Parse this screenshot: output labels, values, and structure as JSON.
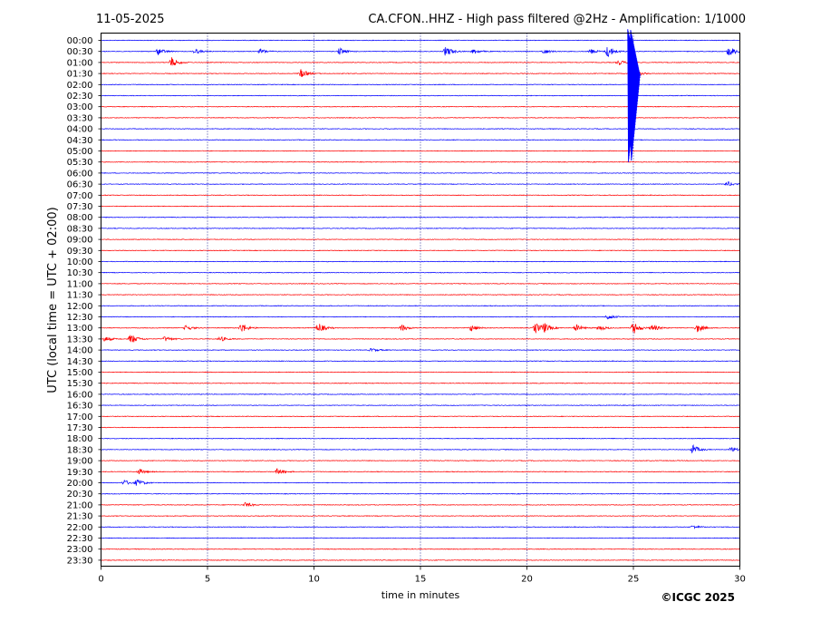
{
  "header": {
    "date": "11-05-2025",
    "title": "CA.CFON..HHZ - High pass filtered @2Hz - Amplification: 1/1000"
  },
  "footer": {
    "copyright": "©ICGC 2025"
  },
  "chart_data": {
    "type": "line",
    "xlabel": "time in minutes",
    "ylabel": "UTC (local time = UTC + 02:00)",
    "xlim": [
      0,
      30
    ],
    "x_ticks": [
      0,
      5,
      10,
      15,
      20,
      25,
      30
    ],
    "vertical_gridlines": [
      5,
      10,
      15,
      20,
      25
    ],
    "grid": "vertical dotted",
    "colors": {
      "odd_hour_traces": "#ff0000",
      "even_hour_traces": "#0000ff",
      "grid": "#000080"
    },
    "rows": [
      "00:00",
      "00:30",
      "01:00",
      "01:30",
      "02:00",
      "02:30",
      "03:00",
      "03:30",
      "04:00",
      "04:30",
      "05:00",
      "05:30",
      "06:00",
      "06:30",
      "07:00",
      "07:30",
      "08:00",
      "08:30",
      "09:00",
      "09:30",
      "10:00",
      "10:30",
      "11:00",
      "11:30",
      "12:00",
      "12:30",
      "13:00",
      "13:30",
      "14:00",
      "14:30",
      "15:00",
      "15:30",
      "16:00",
      "16:30",
      "17:00",
      "17:30",
      "18:00",
      "18:30",
      "19:00",
      "19:30",
      "20:00",
      "20:30",
      "21:00",
      "21:30",
      "22:00",
      "22:30",
      "23:00",
      "23:30"
    ],
    "events": [
      {
        "row": 1,
        "t": 2.7,
        "amp": 4
      },
      {
        "row": 1,
        "t": 4.4,
        "amp": 3
      },
      {
        "row": 1,
        "t": 7.5,
        "amp": 3
      },
      {
        "row": 1,
        "t": 11.2,
        "amp": 4
      },
      {
        "row": 1,
        "t": 16.2,
        "amp": 6
      },
      {
        "row": 1,
        "t": 17.5,
        "amp": 3
      },
      {
        "row": 1,
        "t": 20.8,
        "amp": 3
      },
      {
        "row": 1,
        "t": 23.0,
        "amp": 3
      },
      {
        "row": 1,
        "t": 23.8,
        "amp": 7
      },
      {
        "row": 1,
        "t": 29.5,
        "amp": 6
      },
      {
        "row": 2,
        "t": 3.3,
        "amp": 6
      },
      {
        "row": 2,
        "t": 24.3,
        "amp": 3
      },
      {
        "row": 3,
        "t": 9.4,
        "amp": 5
      },
      {
        "row": 3,
        "t": 24.9,
        "amp": 8
      },
      {
        "row": 13,
        "t": 29.4,
        "amp": 3
      },
      {
        "row": 25,
        "t": 23.8,
        "amp": 3
      },
      {
        "row": 26,
        "t": 4.0,
        "amp": 3
      },
      {
        "row": 26,
        "t": 6.6,
        "amp": 6
      },
      {
        "row": 26,
        "t": 10.2,
        "amp": 6
      },
      {
        "row": 26,
        "t": 14.1,
        "amp": 4
      },
      {
        "row": 26,
        "t": 17.4,
        "amp": 4
      },
      {
        "row": 26,
        "t": 20.4,
        "amp": 6
      },
      {
        "row": 26,
        "t": 20.8,
        "amp": 5
      },
      {
        "row": 26,
        "t": 22.3,
        "amp": 4
      },
      {
        "row": 26,
        "t": 23.4,
        "amp": 3
      },
      {
        "row": 26,
        "t": 25.0,
        "amp": 7
      },
      {
        "row": 26,
        "t": 25.9,
        "amp": 4
      },
      {
        "row": 26,
        "t": 28.0,
        "amp": 5
      },
      {
        "row": 27,
        "t": 0.2,
        "amp": 3
      },
      {
        "row": 27,
        "t": 1.4,
        "amp": 6
      },
      {
        "row": 27,
        "t": 3.0,
        "amp": 3
      },
      {
        "row": 27,
        "t": 5.6,
        "amp": 3
      },
      {
        "row": 28,
        "t": 12.7,
        "amp": 2
      },
      {
        "row": 37,
        "t": 27.8,
        "amp": 5
      },
      {
        "row": 37,
        "t": 29.6,
        "amp": 3
      },
      {
        "row": 39,
        "t": 1.8,
        "amp": 3
      },
      {
        "row": 39,
        "t": 8.3,
        "amp": 4
      },
      {
        "row": 40,
        "t": 1.1,
        "amp": 3
      },
      {
        "row": 40,
        "t": 1.7,
        "amp": 4
      },
      {
        "row": 42,
        "t": 6.8,
        "amp": 3
      },
      {
        "row": 44,
        "t": 27.8,
        "amp": 2
      }
    ],
    "spike": {
      "row": 3,
      "t": 24.8,
      "up_rows": 4,
      "down_rows": 8
    }
  }
}
